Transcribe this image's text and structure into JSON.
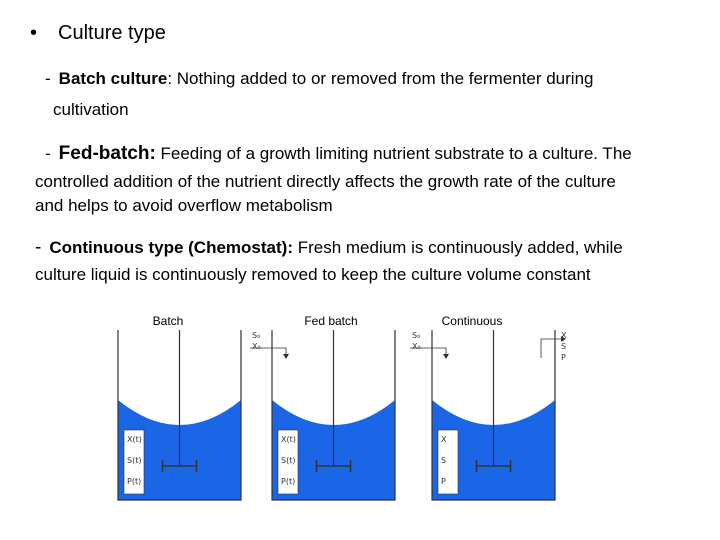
{
  "heading": {
    "bullet": "•",
    "text": "Culture type"
  },
  "batch": {
    "dash": "-",
    "term": "Batch culture",
    "desc": ": Nothing added to or removed from the fermenter during",
    "desc2": "cultivation"
  },
  "fedbatch": {
    "dash": "-",
    "term": "Fed-batch:",
    "desc": " Feeding of a growth limiting nutrient substrate to a culture. The",
    "desc2": "controlled addition of the nutrient directly affects the growth rate of the culture",
    "desc3": "and helps to avoid overflow metabolism"
  },
  "continuous": {
    "dash": "-",
    "term": "Continuous type (Chemostat):",
    "desc": " Fresh medium is continuously added, while",
    "desc2": "culture liquid is continuously removed to keep the culture volume constant"
  },
  "diagram": {
    "colors": {
      "liquid": "#1a66e6",
      "stroke": "#333333",
      "box": "#ffffff"
    },
    "vessels": [
      {
        "title": "Batch",
        "inputs": [],
        "outputs": [],
        "labels": [
          "X(t)",
          "S(t)",
          "P(t)"
        ]
      },
      {
        "title": "Fed batch",
        "inputs": [
          "S₀",
          "X₀"
        ],
        "outputs": [],
        "labels": [
          "X(t)",
          "S(t)",
          "P(t)"
        ]
      },
      {
        "title": "Continuous",
        "inputs": [
          "S₀",
          "X₀"
        ],
        "outputs": [
          "X",
          "S",
          "P"
        ],
        "labels": [
          "X",
          "S",
          "P"
        ]
      }
    ]
  }
}
